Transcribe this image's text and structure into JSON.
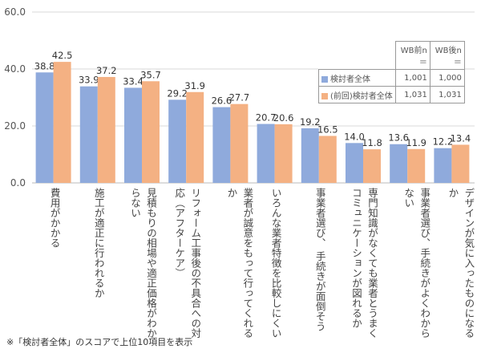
{
  "chart_data": {
    "type": "bar",
    "categories": [
      "費用がかかる",
      "施工が適正に行われるか",
      "見積もりの相場や適正価格がわからない",
      "リフォーム工事後の不具合への対応（アフターケア）",
      "業者が誠意をもって行ってくれるか",
      "いろんな業者特徴を比較しにくい",
      "事業者選び、 手続きが面倒そう",
      "専門知識がなくても業者とうまくコミュニケーションが図れるか",
      "事業者選び、手続きがよくわからない",
      "デザインが気に入ったものになるか"
    ],
    "series": [
      {
        "name": "検討者全体",
        "color": "#8FAADC",
        "values": [
          38.8,
          33.9,
          33.4,
          29.2,
          26.6,
          20.7,
          19.2,
          14.0,
          13.6,
          12.2
        ],
        "labels": [
          "38.8",
          "33.9",
          "33.4",
          "29.2",
          "26.6",
          "20.7",
          "19.2",
          "14.0",
          "13.6",
          "12.2"
        ]
      },
      {
        "name": "(前回)検討者全体",
        "color": "#F4B183",
        "values": [
          42.5,
          37.2,
          35.7,
          31.9,
          27.7,
          20.6,
          16.5,
          11.8,
          11.9,
          13.4
        ],
        "labels": [
          "42.5",
          "37.2",
          "35.7",
          "31.9",
          "27.7",
          "20.6",
          "16.5",
          "11.8",
          "11.9",
          "13.4"
        ]
      }
    ],
    "ylim": [
      0,
      60
    ],
    "yticks": [
      "0.0",
      "20.0",
      "40.0",
      "60.0"
    ],
    "grid": true,
    "legend_position": "top-right"
  },
  "legend_table": {
    "headers": [
      "WB前n＝",
      "WB後n＝"
    ],
    "rows": [
      {
        "label": "検討者全体",
        "values": [
          "1,001",
          "1,000"
        ]
      },
      {
        "label": "(前回)検討者全体",
        "values": [
          "1,031",
          "1,031"
        ]
      }
    ]
  },
  "footnote": "※「検討者全体」のスコアで上位10項目を表示"
}
